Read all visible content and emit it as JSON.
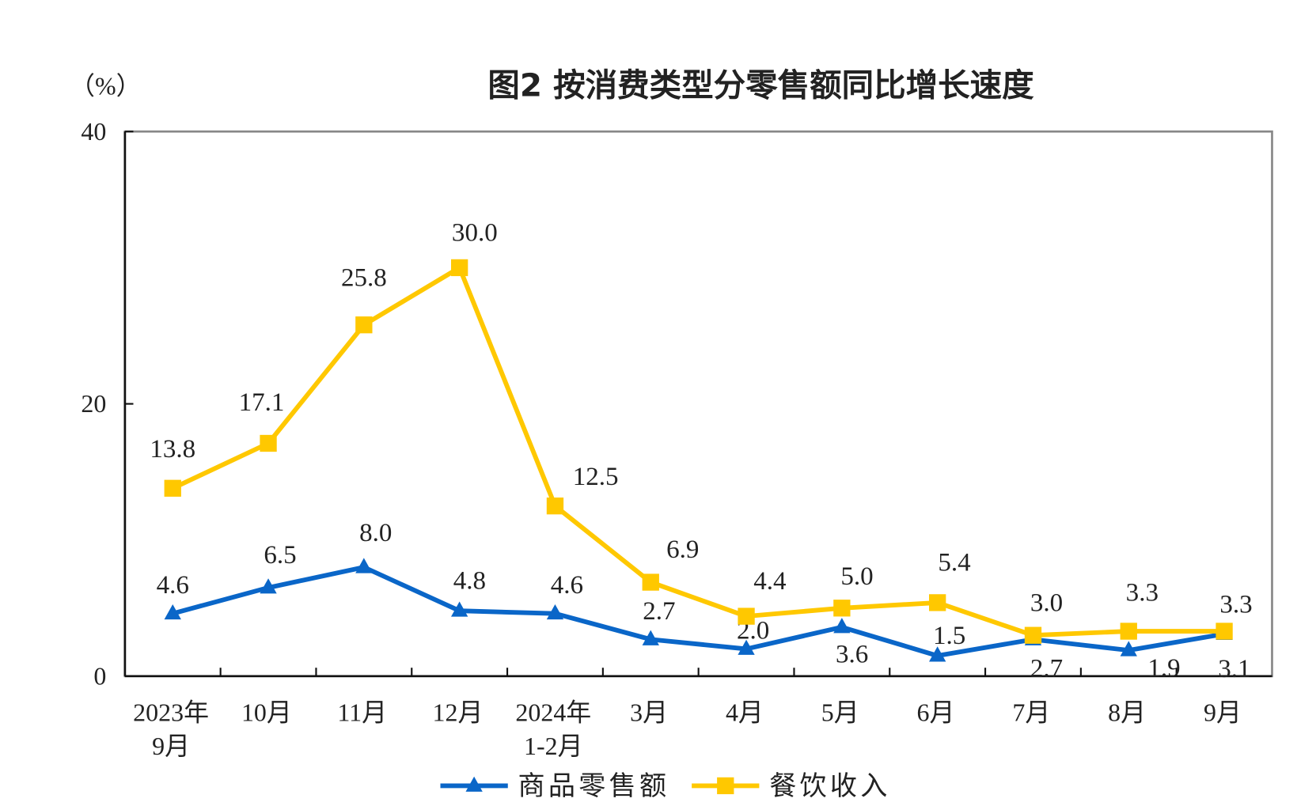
{
  "chart_data": {
    "type": "line",
    "title": "图2  按消费类型分零售额同比增长速度",
    "ylabel": "（%）",
    "xlabel": "",
    "ylim": [
      0,
      40
    ],
    "yticks": [
      "0",
      "20",
      "40"
    ],
    "grid": false,
    "legend_position": "bottom",
    "categories": [
      [
        "2023年",
        "9月"
      ],
      [
        "10月"
      ],
      [
        "11月"
      ],
      [
        "12月"
      ],
      [
        "2024年",
        "1-2月"
      ],
      [
        "3月"
      ],
      [
        "4月"
      ],
      [
        "5月"
      ],
      [
        "6月"
      ],
      [
        "7月"
      ],
      [
        "8月"
      ],
      [
        "9月"
      ]
    ],
    "series": [
      {
        "name": "商品零售额",
        "color": "#0a66c8",
        "marker": "triangle",
        "values": [
          4.6,
          6.5,
          8.0,
          4.8,
          4.6,
          2.7,
          2.0,
          3.6,
          1.5,
          2.7,
          1.9,
          3.1
        ],
        "labels": [
          "4.6",
          "6.5",
          "8.0",
          "4.8",
          "4.6",
          "2.7",
          "2.0",
          "3.6",
          "1.5",
          "2.7",
          "1.9",
          "3.1"
        ]
      },
      {
        "name": "餐饮收入",
        "color": "#ffc800",
        "marker": "square",
        "values": [
          13.8,
          17.1,
          25.8,
          30.0,
          12.5,
          6.9,
          4.4,
          5.0,
          5.4,
          3.0,
          3.3,
          3.3
        ],
        "labels": [
          "13.8",
          "17.1",
          "25.8",
          "30.0",
          "12.5",
          "6.9",
          "4.4",
          "5.0",
          "5.4",
          "3.0",
          "3.3",
          "3.3"
        ]
      }
    ]
  }
}
